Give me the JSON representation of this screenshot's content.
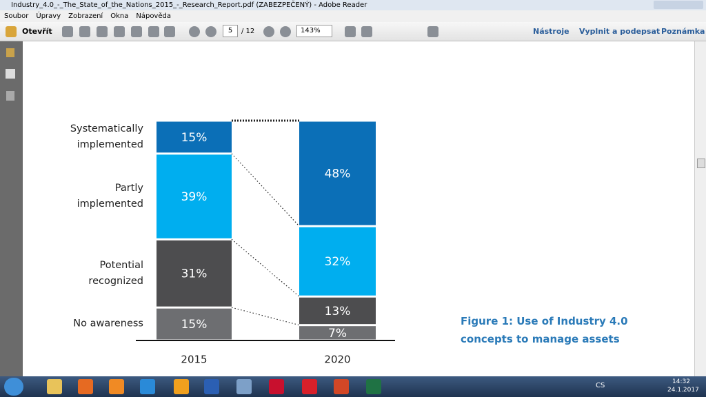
{
  "window": {
    "title": "Industry_4.0_-_The_State_of_the_Nations_2015_-_Research_Report.pdf (ZABEZPEČENÝ) - Adobe Reader"
  },
  "menu": [
    "Soubor",
    "Úpravy",
    "Zobrazení",
    "Okna",
    "Nápověda"
  ],
  "toolbar": {
    "open": "Otevřít",
    "page": "5",
    "page_total": "/ 12",
    "zoom": "143%",
    "panels": [
      "Nástroje",
      "Vyplnit a podepsat",
      "Poznámka"
    ]
  },
  "chart_data": {
    "type": "stacked-bar",
    "title": "Figure 1: Use of Industry 4.0 concepts to manage assets",
    "categories": [
      "2015",
      "2020"
    ],
    "ylim": [
      0,
      100
    ],
    "series": [
      {
        "name": "No awareness",
        "color": "#6d6e71",
        "values": [
          15,
          7
        ],
        "value_labels": [
          "15%",
          "7%"
        ]
      },
      {
        "name": "Potential recognized",
        "color": "#4d4d4f",
        "values": [
          31,
          13
        ],
        "value_labels": [
          "31%",
          "13%"
        ]
      },
      {
        "name": "Partly implemented",
        "color": "#00aeef",
        "values": [
          39,
          32
        ],
        "value_labels": [
          "39%",
          "32%"
        ]
      },
      {
        "name": "Systematically implemented",
        "color": "#0b6fb7",
        "values": [
          15,
          48
        ],
        "value_labels": [
          "15%",
          "48%"
        ]
      }
    ]
  },
  "taskbar": {
    "language": "CS",
    "time": "14:32",
    "date": "24.1.2017"
  }
}
